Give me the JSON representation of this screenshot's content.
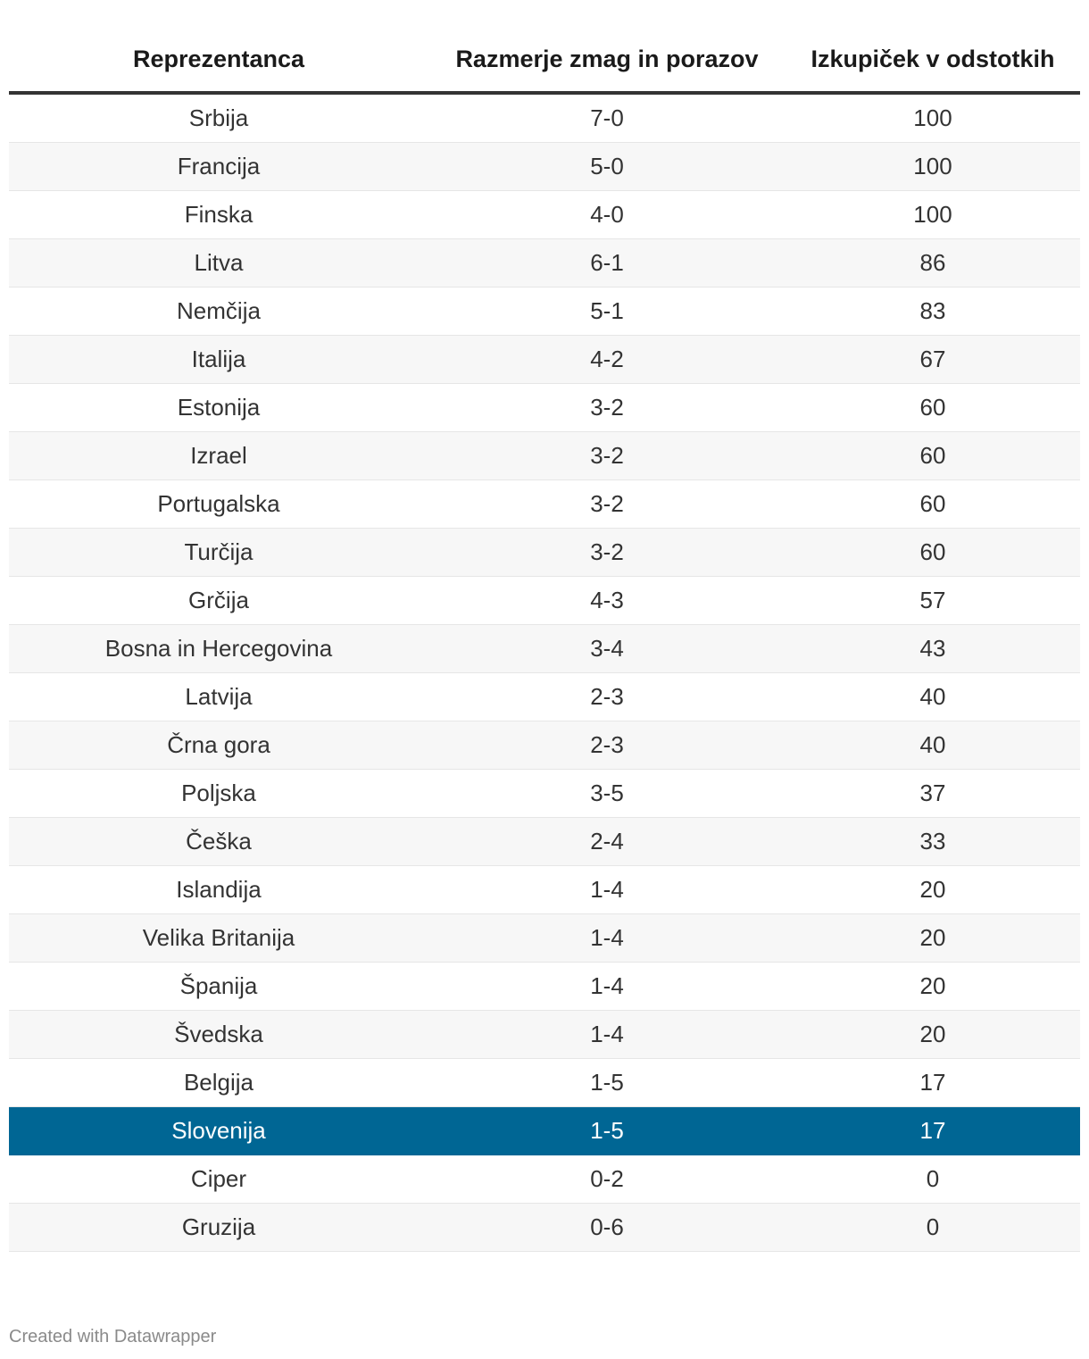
{
  "chart_data": {
    "type": "table",
    "columns": [
      "Reprezentanca",
      "Razmerje zmag in porazov",
      "Izkupiček v odstotkih"
    ],
    "rows": [
      [
        "Srbija",
        "7-0",
        100
      ],
      [
        "Francija",
        "5-0",
        100
      ],
      [
        "Finska",
        "4-0",
        100
      ],
      [
        "Litva",
        "6-1",
        86
      ],
      [
        "Nemčija",
        "5-1",
        83
      ],
      [
        "Italija",
        "4-2",
        67
      ],
      [
        "Estonija",
        "3-2",
        60
      ],
      [
        "Izrael",
        "3-2",
        60
      ],
      [
        "Portugalska",
        "3-2",
        60
      ],
      [
        "Turčija",
        "3-2",
        60
      ],
      [
        "Grčija",
        "4-3",
        57
      ],
      [
        "Bosna in Hercegovina",
        "3-4",
        43
      ],
      [
        "Latvija",
        "2-3",
        40
      ],
      [
        "Črna gora",
        "2-3",
        40
      ],
      [
        "Poljska",
        "3-5",
        37
      ],
      [
        "Češka",
        "2-4",
        33
      ],
      [
        "Islandija",
        "1-4",
        20
      ],
      [
        "Velika Britanija",
        "1-4",
        20
      ],
      [
        "Španija",
        "1-4",
        20
      ],
      [
        "Švedska",
        "1-4",
        20
      ],
      [
        "Belgija",
        "1-5",
        17
      ],
      [
        "Slovenija",
        "1-5",
        17
      ],
      [
        "Ciper",
        "0-2",
        0
      ],
      [
        "Gruzija",
        "0-6",
        0
      ]
    ],
    "highlighted_row": "Slovenija",
    "highlight_color": "#006694"
  },
  "footer": {
    "credit": "Created with Datawrapper"
  }
}
